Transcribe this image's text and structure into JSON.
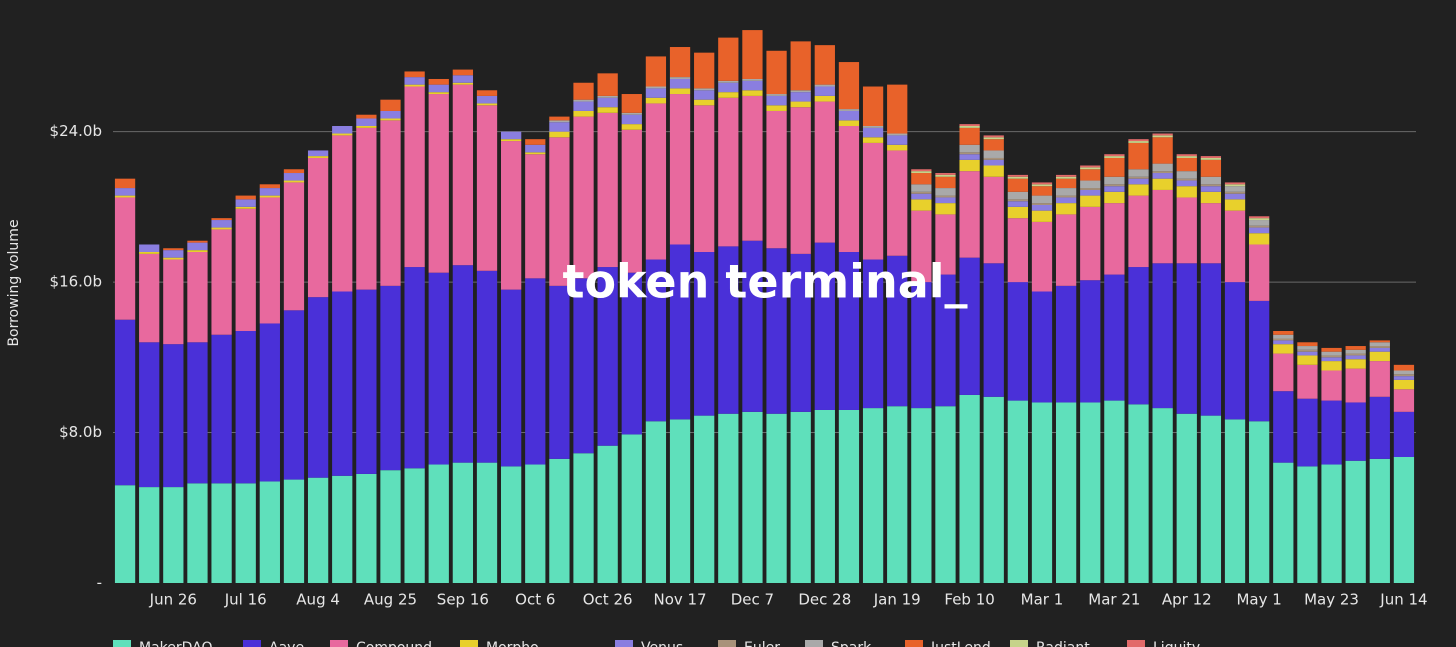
{
  "chart_data": {
    "type": "stacked_bar",
    "y_label": "Borrowing volume",
    "watermark": "token terminal_",
    "ylim": [
      0,
      31
    ],
    "yticks": [
      {
        "value": 0,
        "label": "-"
      },
      {
        "value": 8,
        "label": "$8.0b"
      },
      {
        "value": 16,
        "label": "$16.0b"
      },
      {
        "value": 24,
        "label": "$24.0b"
      }
    ],
    "grid": true,
    "legend": "bottom",
    "categories": [
      null,
      null,
      "Jun 26",
      null,
      null,
      "Jul 16",
      null,
      null,
      "Aug 4",
      null,
      null,
      "Aug 25",
      null,
      null,
      "Sep 16",
      null,
      null,
      "Oct 6",
      null,
      null,
      "Oct 26",
      null,
      null,
      "Nov 17",
      null,
      null,
      "Dec 7",
      null,
      null,
      "Dec 28",
      null,
      null,
      "Jan 19",
      null,
      null,
      "Feb 10",
      null,
      null,
      "Mar 1",
      null,
      null,
      "Mar 21",
      null,
      null,
      "Apr 12",
      null,
      null,
      "May 1",
      null,
      null,
      "May 23",
      null,
      null,
      "Jun 14"
    ],
    "series": [
      {
        "name": "MakerDAO",
        "color": "#5fe0bb",
        "values": [
          5.2,
          5.1,
          5.1,
          5.3,
          5.3,
          5.3,
          5.4,
          5.5,
          5.6,
          5.7,
          5.8,
          6.0,
          6.1,
          6.3,
          6.4,
          6.4,
          6.2,
          6.3,
          6.6,
          6.9,
          7.3,
          7.9,
          8.6,
          8.7,
          8.9,
          9.0,
          9.1,
          9.0,
          9.1,
          9.2,
          9.2,
          9.3,
          9.4,
          9.3,
          9.4,
          10.0,
          9.9,
          9.7,
          9.6,
          9.6,
          9.6,
          9.7,
          9.5,
          9.3,
          9.0,
          8.9,
          8.7,
          8.6,
          6.4,
          6.2,
          6.3,
          6.5,
          6.6,
          6.7
        ]
      },
      {
        "name": "Aave",
        "color": "#4a30d8",
        "values": [
          8.8,
          7.7,
          7.6,
          7.5,
          7.9,
          8.1,
          8.4,
          9.0,
          9.6,
          9.8,
          9.8,
          9.8,
          10.7,
          10.2,
          10.5,
          10.2,
          9.4,
          9.9,
          9.2,
          9.3,
          9.5,
          8.6,
          8.6,
          9.3,
          8.7,
          8.9,
          9.1,
          8.8,
          8.4,
          8.9,
          8.4,
          7.9,
          8.0,
          6.7,
          7.0,
          7.3,
          7.1,
          6.3,
          5.9,
          6.2,
          6.5,
          6.7,
          7.3,
          7.7,
          8.0,
          8.1,
          7.3,
          6.4,
          3.8,
          3.6,
          3.4,
          3.1,
          3.3,
          2.4
        ]
      },
      {
        "name": "Compound",
        "color": "#e8699e",
        "values": [
          6.5,
          4.7,
          4.5,
          4.8,
          5.6,
          6.5,
          6.7,
          6.8,
          7.4,
          8.3,
          8.6,
          8.8,
          9.6,
          9.5,
          9.6,
          8.8,
          7.9,
          6.6,
          7.9,
          8.6,
          8.2,
          7.6,
          8.3,
          8.0,
          7.8,
          7.9,
          7.7,
          7.3,
          7.8,
          7.5,
          6.7,
          6.2,
          5.6,
          3.8,
          3.2,
          4.6,
          4.6,
          3.4,
          3.7,
          3.8,
          3.9,
          3.8,
          3.8,
          3.9,
          3.5,
          3.2,
          3.8,
          3.0,
          2.0,
          1.8,
          1.6,
          1.8,
          1.9,
          1.2
        ]
      },
      {
        "name": "Morpho",
        "color": "#e8d02c",
        "values": [
          0.1,
          0.1,
          0.1,
          0.1,
          0.1,
          0.1,
          0.1,
          0.1,
          0.1,
          0.1,
          0.1,
          0.1,
          0.1,
          0.1,
          0.1,
          0.1,
          0.1,
          0.1,
          0.3,
          0.3,
          0.3,
          0.3,
          0.3,
          0.3,
          0.3,
          0.3,
          0.3,
          0.3,
          0.3,
          0.3,
          0.3,
          0.3,
          0.3,
          0.6,
          0.6,
          0.6,
          0.6,
          0.6,
          0.6,
          0.6,
          0.6,
          0.6,
          0.6,
          0.6,
          0.6,
          0.6,
          0.6,
          0.6,
          0.5,
          0.5,
          0.5,
          0.5,
          0.5,
          0.5
        ]
      },
      {
        "name": "Venus",
        "color": "#8a7ee0",
        "values": [
          0.4,
          0.4,
          0.4,
          0.4,
          0.4,
          0.4,
          0.4,
          0.4,
          0.3,
          0.4,
          0.4,
          0.4,
          0.4,
          0.4,
          0.4,
          0.4,
          0.4,
          0.4,
          0.5,
          0.5,
          0.5,
          0.5,
          0.5,
          0.5,
          0.5,
          0.5,
          0.5,
          0.5,
          0.5,
          0.5,
          0.5,
          0.5,
          0.5,
          0.3,
          0.3,
          0.3,
          0.3,
          0.3,
          0.3,
          0.3,
          0.3,
          0.3,
          0.3,
          0.3,
          0.3,
          0.3,
          0.3,
          0.3,
          0.2,
          0.2,
          0.2,
          0.2,
          0.2,
          0.2
        ]
      },
      {
        "name": "Euler",
        "color": "#a8927a",
        "values": [
          0,
          0,
          0,
          0,
          0,
          0,
          0,
          0,
          0,
          0,
          0,
          0,
          0,
          0,
          0,
          0,
          0,
          0,
          0,
          0,
          0,
          0,
          0,
          0,
          0,
          0,
          0,
          0,
          0,
          0,
          0,
          0,
          0,
          0.1,
          0.1,
          0.1,
          0.1,
          0.1,
          0.1,
          0.1,
          0.1,
          0.1,
          0.1,
          0.1,
          0.1,
          0.1,
          0.1,
          0.1,
          0.1,
          0.1,
          0.1,
          0.1,
          0.1,
          0.1
        ]
      },
      {
        "name": "Spark",
        "color": "#a9a9a9",
        "values": [
          0,
          0,
          0,
          0,
          0,
          0,
          0,
          0,
          0,
          0,
          0,
          0,
          0,
          0,
          0,
          0,
          0,
          0,
          0.1,
          0.1,
          0.1,
          0.1,
          0.1,
          0.1,
          0.1,
          0.1,
          0.1,
          0.1,
          0.1,
          0.1,
          0.1,
          0.1,
          0.1,
          0.4,
          0.4,
          0.4,
          0.4,
          0.4,
          0.4,
          0.4,
          0.4,
          0.4,
          0.4,
          0.4,
          0.4,
          0.4,
          0.3,
          0.3,
          0.2,
          0.2,
          0.2,
          0.2,
          0.2,
          0.2
        ]
      },
      {
        "name": "JustLend",
        "color": "#e8622a",
        "values": [
          0.5,
          0.0,
          0.1,
          0.1,
          0.1,
          0.2,
          0.2,
          0.2,
          0.0,
          0.0,
          0.2,
          0.6,
          0.3,
          0.3,
          0.3,
          0.3,
          0.0,
          0.3,
          0.2,
          0.9,
          1.2,
          1.0,
          1.6,
          1.6,
          1.9,
          2.3,
          2.6,
          2.3,
          2.6,
          2.1,
          2.5,
          2.1,
          2.6,
          0.6,
          0.6,
          0.9,
          0.6,
          0.7,
          0.5,
          0.5,
          0.6,
          1.0,
          1.4,
          1.4,
          0.7,
          0.9,
          0.0,
          0.0,
          0.2,
          0.2,
          0.2,
          0.2,
          0.1,
          0.3
        ]
      },
      {
        "name": "Radiant",
        "color": "#c6d38a",
        "values": [
          0,
          0,
          0,
          0,
          0,
          0,
          0,
          0,
          0,
          0,
          0,
          0,
          0,
          0,
          0,
          0,
          0,
          0,
          0,
          0,
          0,
          0,
          0,
          0,
          0,
          0,
          0,
          0,
          0,
          0,
          0,
          0,
          0,
          0.1,
          0.1,
          0.1,
          0.1,
          0.1,
          0.1,
          0.1,
          0.1,
          0.1,
          0.1,
          0.1,
          0.1,
          0.1,
          0.1,
          0.1,
          0,
          0,
          0,
          0,
          0,
          0
        ]
      },
      {
        "name": "Liquity",
        "color": "#e26a6a",
        "values": [
          0,
          0,
          0,
          0,
          0,
          0,
          0,
          0,
          0,
          0,
          0,
          0,
          0,
          0,
          0,
          0,
          0,
          0,
          0,
          0,
          0,
          0,
          0,
          0,
          0,
          0,
          0,
          0,
          0,
          0,
          0,
          0,
          0,
          0.1,
          0.1,
          0.1,
          0.1,
          0.1,
          0.1,
          0.1,
          0.1,
          0.1,
          0.1,
          0.1,
          0.1,
          0.1,
          0.1,
          0.1,
          0,
          0,
          0,
          0,
          0,
          0
        ]
      }
    ]
  }
}
